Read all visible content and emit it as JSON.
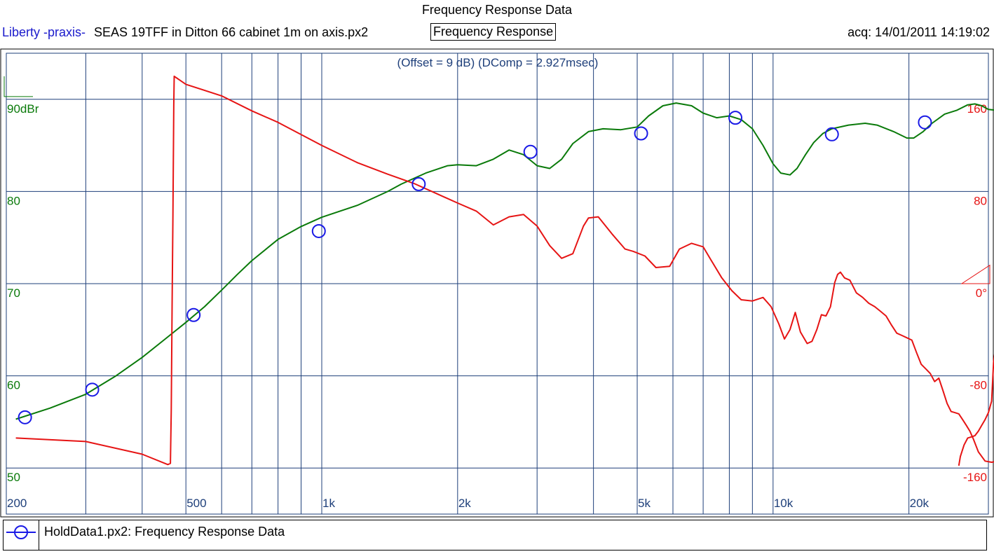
{
  "header": {
    "title": "Frequency Response Data",
    "brand": "Liberty -praxis-",
    "filename": "SEAS 19TFF in Ditton 66 cabinet 1m on axis.px2",
    "mode_label": "Frequency Response",
    "acquired": "acq: 14/01/2011 14:19:02"
  },
  "legend": {
    "entry": "HoldData1.px2:  Frequency Response Data",
    "marker_color": "#1a1ae6"
  },
  "colors": {
    "magnitude": "#0a7a0a",
    "phase": "#e61414",
    "grid": "#1e3f7a",
    "marker": "#1a1ae6",
    "annotation": "#1e3f7a"
  },
  "chart_data": {
    "type": "line",
    "title": "Frequency Response Data",
    "annotation": "(Offset = 9 dB) (DComp = 2.927msec)",
    "x_scale": "log",
    "xlim": [
      200,
      30000
    ],
    "x_ticks": [
      200,
      500,
      1000,
      2000,
      5000,
      10000,
      20000
    ],
    "x_tick_labels": [
      "200",
      "500",
      "1k",
      "2k",
      "5k",
      "10k",
      "20k"
    ],
    "y_left": {
      "ylim": [
        45,
        95
      ],
      "ticks": [
        50,
        60,
        70,
        80,
        90
      ],
      "tick_labels": [
        "50",
        "60",
        "70",
        "80",
        "90dBr"
      ]
    },
    "y_right": {
      "ylim": [
        -200,
        200
      ],
      "ticks": [
        -160,
        -80,
        0,
        80,
        160
      ],
      "tick_labels": [
        "-160",
        "-80",
        "0°",
        "80",
        "160"
      ]
    },
    "grid": true,
    "series": [
      {
        "axis": "left",
        "points": [
          [
            210,
            55.3
          ],
          [
            250,
            56.5
          ],
          [
            300,
            58.0
          ],
          [
            350,
            60.0
          ],
          [
            400,
            62.0
          ],
          [
            450,
            64.0
          ],
          [
            500,
            65.8
          ],
          [
            550,
            67.5
          ],
          [
            600,
            69.3
          ],
          [
            650,
            71.0
          ],
          [
            700,
            72.5
          ],
          [
            800,
            74.8
          ],
          [
            900,
            76.2
          ],
          [
            1000,
            77.2
          ],
          [
            1200,
            78.5
          ],
          [
            1400,
            80.0
          ],
          [
            1500,
            80.8
          ],
          [
            1700,
            82.0
          ],
          [
            1900,
            82.8
          ],
          [
            2000,
            82.9
          ],
          [
            2200,
            82.8
          ],
          [
            2400,
            83.5
          ],
          [
            2600,
            84.5
          ],
          [
            2800,
            84.0
          ],
          [
            3000,
            82.8
          ],
          [
            3200,
            82.5
          ],
          [
            3400,
            83.5
          ],
          [
            3600,
            85.2
          ],
          [
            3900,
            86.5
          ],
          [
            4200,
            86.8
          ],
          [
            4600,
            86.7
          ],
          [
            5000,
            87.0
          ],
          [
            5300,
            88.2
          ],
          [
            5700,
            89.3
          ],
          [
            6100,
            89.6
          ],
          [
            6600,
            89.3
          ],
          [
            7000,
            88.5
          ],
          [
            7500,
            88.0
          ],
          [
            8000,
            88.2
          ],
          [
            8500,
            87.8
          ],
          [
            9000,
            86.8
          ],
          [
            9500,
            85.0
          ],
          [
            10000,
            83.0
          ],
          [
            10400,
            82.0
          ],
          [
            10900,
            81.8
          ],
          [
            11300,
            82.5
          ],
          [
            11800,
            84.0
          ],
          [
            12300,
            85.3
          ],
          [
            12900,
            86.3
          ],
          [
            13500,
            86.8
          ],
          [
            14700,
            87.2
          ],
          [
            16000,
            87.4
          ],
          [
            17000,
            87.2
          ],
          [
            18500,
            86.5
          ],
          [
            19800,
            85.8
          ],
          [
            20500,
            85.8
          ],
          [
            21500,
            86.5
          ],
          [
            22500,
            87.4
          ],
          [
            24000,
            88.4
          ],
          [
            25500,
            88.8
          ],
          [
            27000,
            89.4
          ],
          [
            28000,
            89.5
          ],
          [
            29000,
            89.3
          ],
          [
            30000,
            88.9
          ],
          [
            31500,
            88.8
          ]
        ]
      },
      {
        "axis": "right",
        "points": [
          [
            210,
            -134
          ],
          [
            300,
            -137
          ],
          [
            400,
            -148
          ],
          [
            456,
            -157
          ],
          [
            462,
            -156
          ],
          [
            464,
            -110
          ],
          [
            466,
            -20
          ],
          [
            468,
            60
          ],
          [
            470,
            155
          ],
          [
            471,
            180
          ],
          [
            500,
            173
          ],
          [
            600,
            163
          ],
          [
            700,
            150
          ],
          [
            800,
            140
          ],
          [
            1000,
            120
          ],
          [
            1200,
            105
          ],
          [
            1400,
            95
          ],
          [
            1600,
            87
          ],
          [
            1800,
            78
          ],
          [
            2000,
            70
          ],
          [
            2200,
            63
          ],
          [
            2400,
            51
          ],
          [
            2600,
            58
          ],
          [
            2800,
            60
          ],
          [
            3000,
            50
          ],
          [
            3200,
            33
          ],
          [
            3400,
            22
          ],
          [
            3600,
            26
          ],
          [
            3800,
            50
          ],
          [
            3900,
            57
          ],
          [
            4100,
            58
          ],
          [
            4400,
            43
          ],
          [
            4700,
            30
          ],
          [
            4900,
            28
          ],
          [
            5200,
            24
          ],
          [
            5500,
            14
          ],
          [
            5900,
            15
          ],
          [
            6200,
            30
          ],
          [
            6600,
            35
          ],
          [
            7000,
            32
          ],
          [
            7300,
            20
          ],
          [
            7700,
            5
          ],
          [
            8100,
            -6
          ],
          [
            8500,
            -14
          ],
          [
            9000,
            -15
          ],
          [
            9500,
            -12
          ],
          [
            9900,
            -20
          ],
          [
            10300,
            -35
          ],
          [
            10600,
            -48
          ],
          [
            10900,
            -40
          ],
          [
            11200,
            -25
          ],
          [
            11500,
            -42
          ],
          [
            11900,
            -52
          ],
          [
            12200,
            -50
          ],
          [
            12500,
            -40
          ],
          [
            12800,
            -27
          ],
          [
            13100,
            -28
          ],
          [
            13400,
            -20
          ],
          [
            13700,
            1
          ],
          [
            13900,
            8
          ],
          [
            14100,
            10
          ],
          [
            14400,
            5
          ],
          [
            14800,
            3
          ],
          [
            15300,
            -8
          ],
          [
            15800,
            -12
          ],
          [
            16300,
            -17
          ],
          [
            16800,
            -20
          ],
          [
            17300,
            -24
          ],
          [
            17800,
            -28
          ],
          [
            18300,
            -36
          ],
          [
            18800,
            -43
          ],
          [
            19300,
            -45
          ],
          [
            19800,
            -47
          ],
          [
            20300,
            -49
          ],
          [
            20800,
            -60
          ],
          [
            21300,
            -70
          ],
          [
            21800,
            -74
          ],
          [
            22300,
            -78
          ],
          [
            22800,
            -85
          ],
          [
            23300,
            -82
          ],
          [
            23800,
            -93
          ],
          [
            24300,
            -104
          ],
          [
            24800,
            -111
          ],
          [
            25300,
            -112
          ],
          [
            25800,
            -113
          ],
          [
            26300,
            -118
          ],
          [
            26800,
            -123
          ],
          [
            27300,
            -128
          ],
          [
            27800,
            -135
          ],
          [
            28500,
            -146
          ],
          [
            29500,
            -154
          ],
          [
            30500,
            -155
          ],
          [
            31500,
            -154
          ],
          [
            32500,
            -154
          ],
          [
            33000,
            -155
          ],
          [
            32000,
            -135
          ],
          [
            31200,
            -80
          ],
          [
            31000,
            -60
          ],
          [
            30800,
            -68
          ],
          [
            30500,
            -102
          ],
          [
            30000,
            -112
          ],
          [
            29500,
            -118
          ],
          [
            29000,
            -123
          ],
          [
            28500,
            -128
          ],
          [
            28000,
            -132
          ],
          [
            27500,
            -133
          ],
          [
            27000,
            -134
          ],
          [
            26500,
            -140
          ],
          [
            26000,
            -150
          ],
          [
            25800,
            -158
          ]
        ]
      }
    ],
    "markers": [
      {
        "series": 0,
        "x": 220,
        "y": 55.5
      },
      {
        "series": 0,
        "x": 310,
        "y": 58.5
      },
      {
        "series": 0,
        "x": 520,
        "y": 66.6
      },
      {
        "series": 0,
        "x": 985,
        "y": 75.7
      },
      {
        "series": 0,
        "x": 1640,
        "y": 80.8
      },
      {
        "series": 0,
        "x": 2900,
        "y": 84.3
      },
      {
        "series": 0,
        "x": 5100,
        "y": 86.3
      },
      {
        "series": 0,
        "x": 8250,
        "y": 88.0
      },
      {
        "series": 0,
        "x": 13500,
        "y": 86.2
      },
      {
        "series": 0,
        "x": 21700,
        "y": 87.5
      }
    ]
  }
}
